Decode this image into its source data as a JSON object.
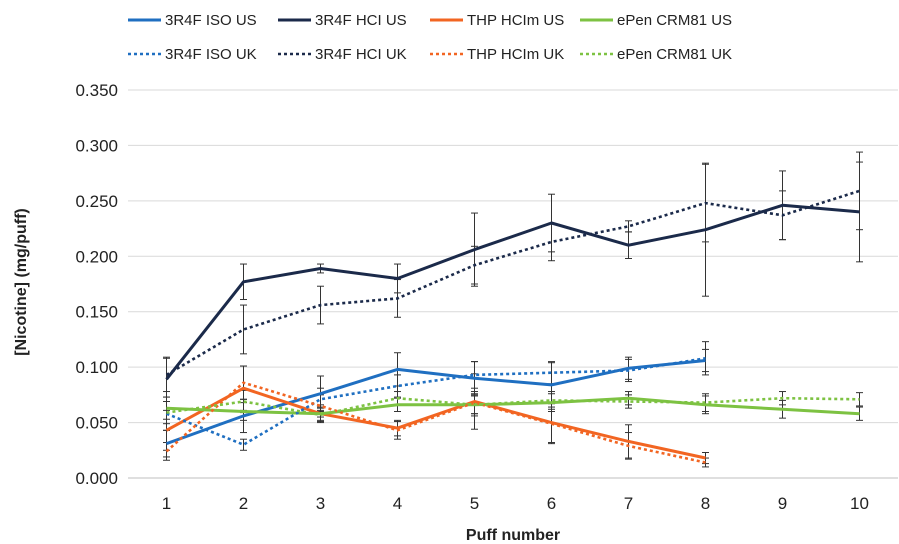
{
  "chart_data": {
    "type": "line",
    "title": "",
    "xlabel": "Puff number",
    "ylabel": "[Nicotine] (mg/puff)",
    "x": [
      1,
      2,
      3,
      4,
      5,
      6,
      7,
      8,
      9,
      10
    ],
    "x_tick_labels": [
      "1",
      "2",
      "3",
      "4",
      "5",
      "6",
      "7",
      "8",
      "9",
      "10"
    ],
    "ylim": [
      0,
      0.35
    ],
    "y_ticks": [
      0,
      0.05,
      0.1,
      0.15,
      0.2,
      0.25,
      0.3,
      0.35
    ],
    "y_tick_labels": [
      "0.000",
      "0.050",
      "0.100",
      "0.150",
      "0.200",
      "0.250",
      "0.300",
      "0.350"
    ],
    "grid": "horizontal",
    "legend_position": "top",
    "series": [
      {
        "name": "3R4F ISO US",
        "color": "#1f6fc1",
        "style": "solid",
        "x": [
          1,
          2,
          3,
          4,
          5,
          6,
          7,
          8
        ],
        "values": [
          0.031,
          0.056,
          0.076,
          0.098,
          0.09,
          0.084,
          0.099,
          0.106
        ],
        "errors": [
          0.012,
          0.015,
          0.016,
          0.015,
          0.015,
          0.02,
          0.01,
          0.01
        ]
      },
      {
        "name": "3R4F HCI US",
        "color": "#1b2a4a",
        "style": "solid",
        "x": [
          1,
          2,
          3,
          4,
          5,
          6,
          7,
          8,
          9,
          10
        ],
        "values": [
          0.089,
          0.177,
          0.189,
          0.18,
          0.206,
          0.23,
          0.21,
          0.224,
          0.246,
          0.24
        ],
        "errors": [
          0.02,
          0.016,
          0.004,
          0.013,
          0.033,
          0.026,
          0.012,
          0.06,
          0.031,
          0.045
        ]
      },
      {
        "name": "THP HCIm US",
        "color": "#f26522",
        "style": "solid",
        "x": [
          1,
          2,
          3,
          4,
          5,
          6,
          7,
          8
        ],
        "values": [
          0.043,
          0.081,
          0.058,
          0.045,
          0.069,
          0.05,
          0.033,
          0.018
        ],
        "errors": [
          0.018,
          0.02,
          0.008,
          0.007,
          0.025,
          0.018,
          0.015,
          0.005
        ]
      },
      {
        "name": "ePen CRM81 US",
        "color": "#7dc242",
        "style": "solid",
        "x": [
          1,
          2,
          3,
          4,
          5,
          6,
          7,
          8,
          9,
          10
        ],
        "values": [
          0.063,
          0.06,
          0.058,
          0.066,
          0.066,
          0.068,
          0.072,
          0.066,
          0.062,
          0.058
        ],
        "errors": [
          0.01,
          0.008,
          0.006,
          0.006,
          0.01,
          0.008,
          0.006,
          0.008,
          0.008,
          0.006
        ]
      },
      {
        "name": "3R4F ISO UK",
        "color": "#1f6fc1",
        "style": "dotted",
        "x": [
          1,
          2,
          3,
          4,
          5,
          6,
          7,
          8
        ],
        "values": [
          0.058,
          0.03,
          0.071,
          0.083,
          0.093,
          0.095,
          0.097,
          0.108
        ],
        "errors": [
          0.015,
          0.005,
          0.01,
          0.01,
          0.012,
          0.01,
          0.01,
          0.015
        ]
      },
      {
        "name": "3R4F HCI UK",
        "color": "#1b2a4a",
        "style": "dotted",
        "x": [
          1,
          2,
          3,
          4,
          5,
          6,
          7,
          8,
          9,
          10
        ],
        "values": [
          0.093,
          0.134,
          0.156,
          0.162,
          0.192,
          0.213,
          0.227,
          0.248,
          0.237,
          0.259
        ],
        "errors": [
          0.015,
          0.022,
          0.017,
          0.017,
          0.017,
          0.017,
          0.005,
          0.035,
          0.022,
          0.035
        ]
      },
      {
        "name": "THP HCIm UK",
        "color": "#f26522",
        "style": "dotted",
        "x": [
          1,
          2,
          3,
          4,
          5,
          6,
          7,
          8
        ],
        "values": [
          0.024,
          0.086,
          0.065,
          0.043,
          0.068,
          0.049,
          0.029,
          0.014
        ],
        "errors": [
          0.008,
          0.015,
          0.01,
          0.008,
          0.01,
          0.018,
          0.012,
          0.004
        ]
      },
      {
        "name": "ePen CRM81 UK",
        "color": "#7dc242",
        "style": "dotted",
        "x": [
          1,
          2,
          3,
          4,
          5,
          6,
          7,
          8,
          9,
          10
        ],
        "values": [
          0.059,
          0.069,
          0.057,
          0.072,
          0.066,
          0.07,
          0.069,
          0.068,
          0.072,
          0.071
        ],
        "errors": [
          0.01,
          0.01,
          0.006,
          0.006,
          0.008,
          0.008,
          0.006,
          0.008,
          0.006,
          0.006
        ]
      }
    ]
  }
}
